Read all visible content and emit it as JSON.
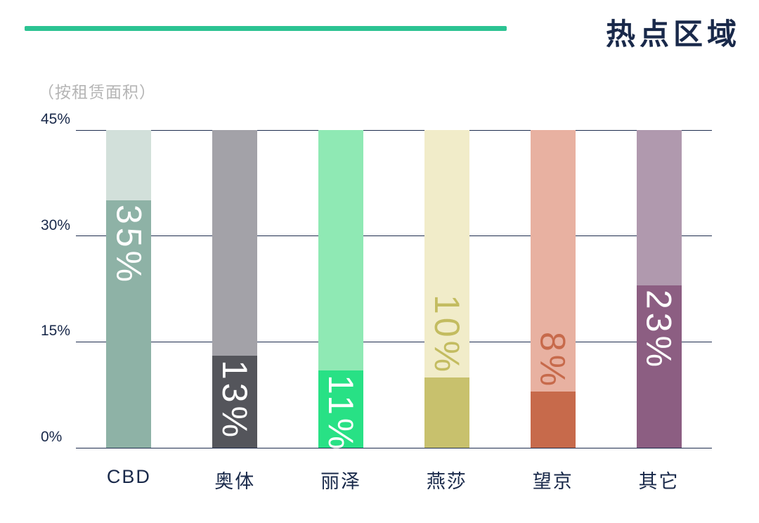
{
  "header": {
    "accent_color": "#2cc392"
  },
  "chart_data": {
    "type": "bar",
    "title": "热点区域",
    "subtitle": "（按租赁面积）",
    "categories": [
      "CBD",
      "奥体",
      "丽泽",
      "燕莎",
      "望京",
      "其它"
    ],
    "values": [
      35,
      13,
      11,
      10,
      8,
      23
    ],
    "value_labels": [
      "35%",
      "13%",
      "11%",
      "10%",
      "8%",
      "23%"
    ],
    "ylim": [
      0,
      45
    ],
    "ytick_values": [
      0,
      15,
      30,
      45
    ],
    "yticks": [
      "0%",
      "15%",
      "30%",
      "45%"
    ],
    "grid": true,
    "legend": "none",
    "axis_color": "#1e2c4d",
    "text_color": "#19294a",
    "bar_styles": [
      {
        "track": "#d2e0da",
        "fill": "#8eb2a6",
        "label_color": "#ffffff",
        "label_inside": true
      },
      {
        "track": "#a3a2a8",
        "fill": "#54555b",
        "label_color": "#ffffff",
        "label_inside": true
      },
      {
        "track": "#8fe9b4",
        "fill": "#28e185",
        "label_color": "#ffffff",
        "label_inside": true
      },
      {
        "track": "#f1ecc9",
        "fill": "#c8c16d",
        "label_color": "#c3bc60",
        "label_inside": false
      },
      {
        "track": "#e8b1a1",
        "fill": "#c76a4b",
        "label_color": "#c76a4b",
        "label_inside": false
      },
      {
        "track": "#b099ae",
        "fill": "#8c5e82",
        "label_color": "#ffffff",
        "label_inside": true
      }
    ]
  }
}
